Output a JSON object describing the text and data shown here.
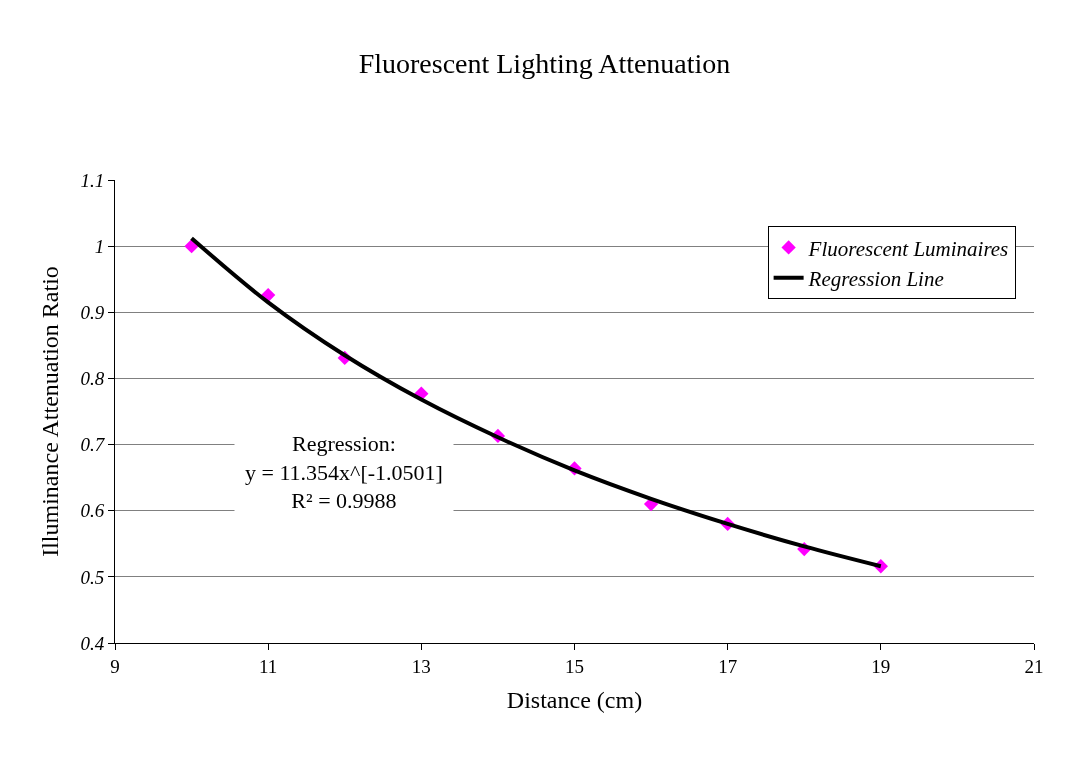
{
  "chart_data": {
    "type": "scatter",
    "title": "Fluorescent Lighting Attenuation",
    "xlabel": "Distance (cm)",
    "ylabel": "Illuminance Attenuation Ratio",
    "x": [
      10,
      11,
      12,
      13,
      14,
      15,
      16,
      17,
      18,
      19
    ],
    "series": [
      {
        "name": "Fluorescent Luminaires",
        "color": "#ff00ff",
        "marker": "diamond",
        "values": [
          1.0,
          0.926,
          0.831,
          0.777,
          0.713,
          0.664,
          0.61,
          0.58,
          0.542,
          0.516
        ]
      },
      {
        "name": "Regression Line",
        "type": "line",
        "color": "#000000",
        "marker": "none",
        "line_style": "solid",
        "values": [
          1.012,
          0.915,
          0.835,
          0.768,
          0.711,
          0.661,
          0.618,
          0.58,
          0.546,
          0.516
        ]
      }
    ],
    "xlim": [
      9,
      21
    ],
    "xticks": [
      9,
      11,
      13,
      15,
      17,
      19,
      21
    ],
    "ylim": [
      0.4,
      1.1
    ],
    "yticks": [
      0.4,
      0.5,
      0.6,
      0.7,
      0.8,
      0.9,
      1,
      1.1
    ],
    "grid": "y",
    "legend": "top right",
    "annotations": [
      "Regression:\ny = 11.354x^[-1.0501]\nR² = 0.9988"
    ]
  }
}
